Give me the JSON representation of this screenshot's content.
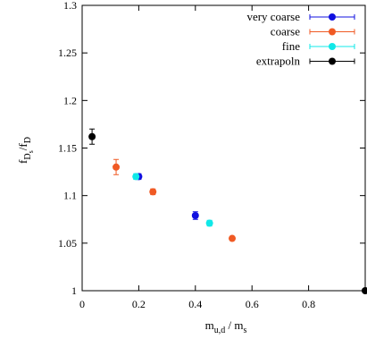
{
  "chart_data": {
    "type": "scatter",
    "xlim": [
      0,
      1
    ],
    "ylim": [
      1,
      1.3
    ],
    "x_ticks": [
      0,
      0.2,
      0.4,
      0.6,
      0.8
    ],
    "x_tick_labels": [
      "0",
      "0.2",
      "0.4",
      "0.6",
      "0.8"
    ],
    "y_ticks": [
      1,
      1.05,
      1.1,
      1.15,
      1.2,
      1.25,
      1.3
    ],
    "y_tick_labels": [
      "1",
      "1.05",
      "1.1",
      "1.15",
      "1.2",
      "1.25",
      "1.3"
    ],
    "ylabel": {
      "main": "f",
      "sub1": "D",
      "subsub": "s",
      "slash": "/f",
      "sub2": "D"
    },
    "xlabel": {
      "main": "m",
      "sub1": "u,d",
      "slash": " / m",
      "sub2": "s"
    },
    "legend_position": "top-right",
    "grid": false,
    "series": [
      {
        "name": "very coarse",
        "color": "#1010e0",
        "points": [
          {
            "x": 0.2,
            "y": 1.12,
            "err": 0.003
          },
          {
            "x": 0.4,
            "y": 1.079,
            "err": 0.004
          }
        ]
      },
      {
        "name": "coarse",
        "color": "#f05a24",
        "points": [
          {
            "x": 0.12,
            "y": 1.13,
            "err": 0.008
          },
          {
            "x": 0.25,
            "y": 1.104,
            "err": 0.003
          },
          {
            "x": 0.53,
            "y": 1.055,
            "err": 0.002
          }
        ]
      },
      {
        "name": "fine",
        "color": "#10e8e8",
        "points": [
          {
            "x": 0.19,
            "y": 1.12,
            "err": 0.003
          },
          {
            "x": 0.45,
            "y": 1.071,
            "err": 0.003
          }
        ]
      },
      {
        "name": "extrapoln",
        "color": "#000000",
        "points": [
          {
            "x": 0.035,
            "y": 1.162,
            "err": 0.008
          },
          {
            "x": 1.0,
            "y": 1.0,
            "err": 0.0
          }
        ]
      }
    ]
  }
}
